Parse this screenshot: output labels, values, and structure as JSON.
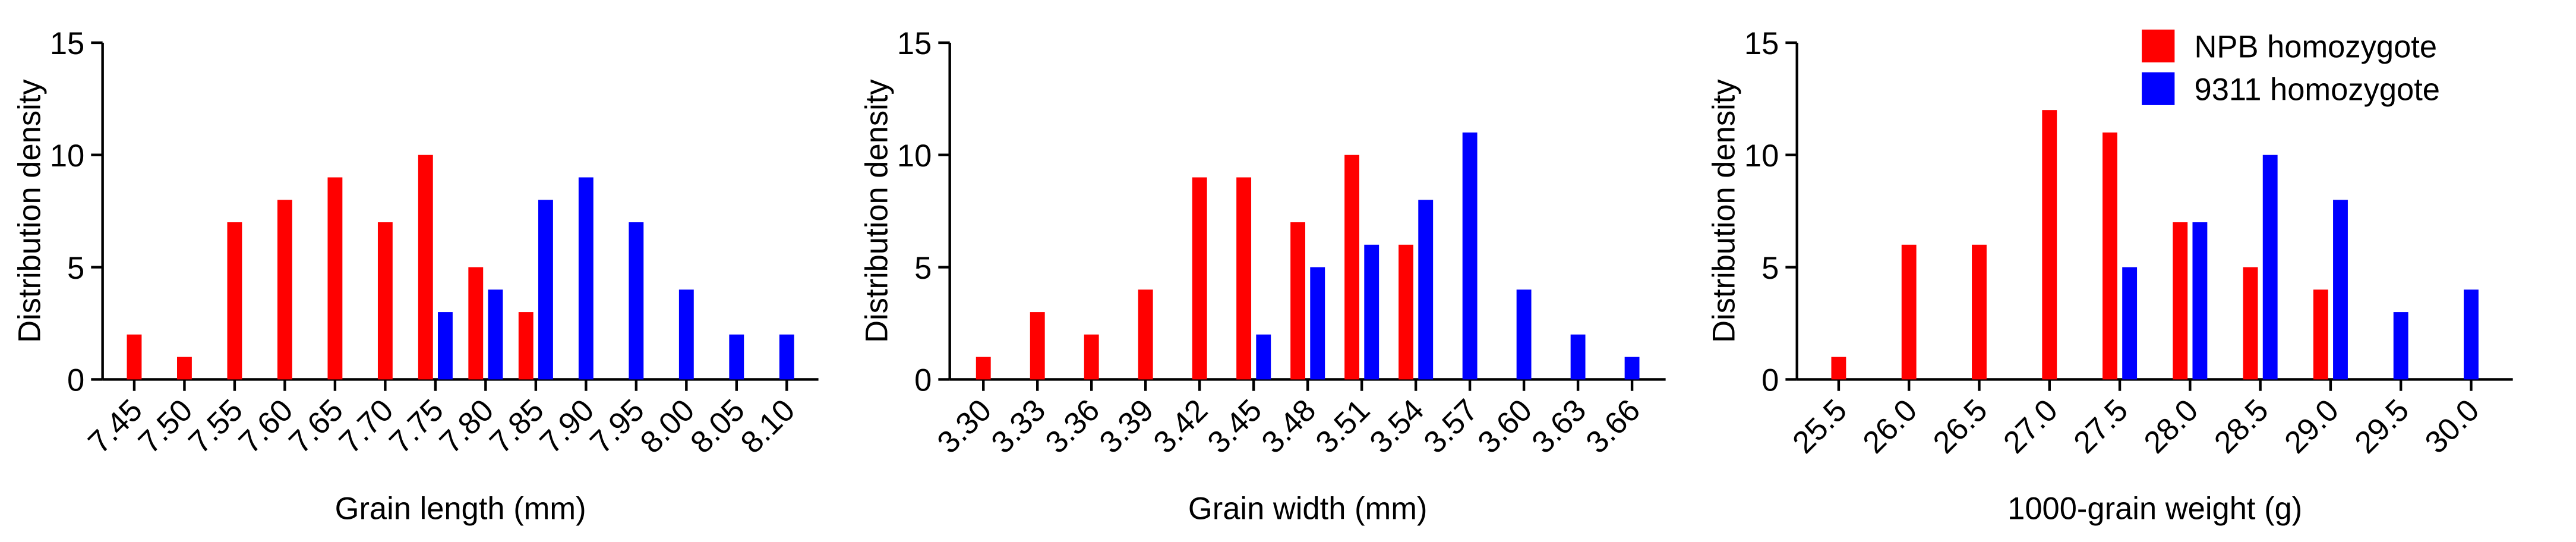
{
  "chart_data": [
    {
      "type": "bar",
      "xlabel": "Grain length (mm)",
      "ylabel": "Distribution density",
      "categories": [
        "7.45",
        "7.50",
        "7.55",
        "7.60",
        "7.65",
        "7.70",
        "7.75",
        "7.80",
        "7.85",
        "7.90",
        "7.95",
        "8.00",
        "8.05",
        "8.10"
      ],
      "series": [
        {
          "color": "#ff0000",
          "values": [
            2,
            1,
            7,
            8,
            9,
            7,
            10,
            5,
            3,
            null,
            null,
            null,
            null,
            null
          ]
        },
        {
          "color": "#0000ff",
          "values": [
            null,
            null,
            null,
            null,
            null,
            null,
            3,
            4,
            8,
            9,
            7,
            4,
            2,
            2
          ]
        }
      ],
      "ylim": [
        0,
        15
      ],
      "yticks": [
        0,
        5,
        10,
        15
      ]
    },
    {
      "type": "bar",
      "xlabel": "Grain width (mm)",
      "ylabel": "Distribution density",
      "categories": [
        "3.30",
        "3.33",
        "3.36",
        "3.39",
        "3.42",
        "3.45",
        "3.48",
        "3.51",
        "3.54",
        "3.57",
        "3.60",
        "3.63",
        "3.66"
      ],
      "series": [
        {
          "color": "#ff0000",
          "values": [
            1,
            3,
            2,
            4,
            9,
            9,
            7,
            10,
            6,
            null,
            null,
            null,
            null
          ]
        },
        {
          "color": "#0000ff",
          "values": [
            null,
            null,
            null,
            null,
            null,
            2,
            5,
            6,
            8,
            11,
            4,
            2,
            1
          ]
        }
      ],
      "ylim": [
        0,
        15
      ],
      "yticks": [
        0,
        5,
        10,
        15
      ]
    },
    {
      "type": "bar",
      "xlabel": "1000-grain weight (g)",
      "ylabel": "Distribution density",
      "categories": [
        "25.5",
        "26.0",
        "26.5",
        "27.0",
        "27.5",
        "28.0",
        "28.5",
        "29.0",
        "29.5",
        "30.0"
      ],
      "series": [
        {
          "name": "NPB homozygote",
          "color": "#ff0000",
          "values": [
            1,
            6,
            6,
            12,
            11,
            7,
            5,
            4,
            null,
            null
          ]
        },
        {
          "name": "9311 homozygote",
          "color": "#0000ff",
          "values": [
            null,
            null,
            null,
            null,
            5,
            7,
            10,
            8,
            3,
            4
          ]
        }
      ],
      "ylim": [
        0,
        15
      ],
      "yticks": [
        0,
        5,
        10,
        15
      ],
      "legend": "upper right"
    }
  ]
}
